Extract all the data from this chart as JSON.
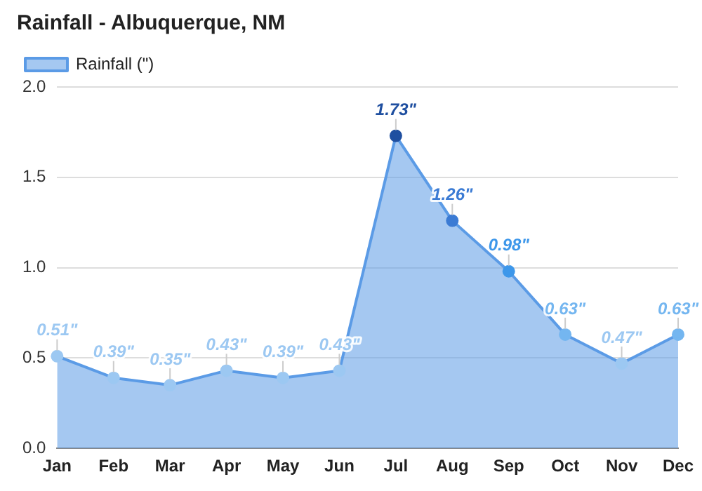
{
  "chart_data": {
    "type": "area",
    "title": "Rainfall - Albuquerque, NM",
    "categories": [
      "Jan",
      "Feb",
      "Mar",
      "Apr",
      "May",
      "Jun",
      "Jul",
      "Aug",
      "Sep",
      "Oct",
      "Nov",
      "Dec"
    ],
    "series": [
      {
        "name": "Rainfall (\")",
        "color": "#5b9be6",
        "values": [
          0.51,
          0.39,
          0.35,
          0.43,
          0.39,
          0.43,
          1.73,
          1.26,
          0.98,
          0.63,
          0.47,
          0.63
        ],
        "colors": [
          "#9cc8f2",
          "#9cc8f2",
          "#9cc8f2",
          "#9cc8f2",
          "#9cc8f2",
          "#9cc8f2",
          "#1f4fa0",
          "#3b7bd4",
          "#3d97ea",
          "#74b6f0",
          "#9cc8f2",
          "#74b6f0"
        ],
        "value_labels": [
          "0.51\"",
          "0.39\"",
          "0.35\"",
          "0.43\"",
          "0.39\"",
          "0.43\"",
          "1.73\"",
          "1.26\"",
          "0.98\"",
          "0.63\"",
          "0.47\"",
          "0.63\""
        ]
      }
    ],
    "ylim": [
      0,
      2
    ],
    "yticks": [
      {
        "value": 0,
        "label": "0.0"
      },
      {
        "value": 0.5,
        "label": "0.5"
      },
      {
        "value": 1,
        "label": "1.0"
      },
      {
        "value": 1.5,
        "label": "1.5"
      },
      {
        "value": 2,
        "label": "2.0"
      }
    ],
    "grid": "y",
    "legend": "top left",
    "marker": "circle"
  }
}
